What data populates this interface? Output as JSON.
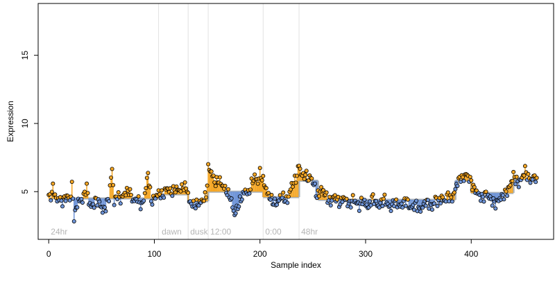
{
  "chart_data": {
    "type": "scatter",
    "title": "",
    "xlabel": "Sample index",
    "ylabel": "Expression",
    "xlim": [
      -10,
      478
    ],
    "ylim": [
      1.5,
      18.8
    ],
    "xticks": [
      0,
      100,
      200,
      300,
      400
    ],
    "yticks": [
      5,
      10,
      15
    ],
    "grid": false,
    "baseline_segments": [
      {
        "x_start": 0,
        "x_end": 104,
        "level": 4.5
      },
      {
        "x_start": 104,
        "x_end": 132,
        "level": 4.8
      },
      {
        "x_start": 132,
        "x_end": 151,
        "level": 4.3
      },
      {
        "x_start": 151,
        "x_end": 203,
        "level": 5.0
      },
      {
        "x_start": 203,
        "x_end": 237,
        "level": 4.6
      },
      {
        "x_start": 237,
        "x_end": 255,
        "level": 5.8
      },
      {
        "x_start": 255,
        "x_end": 385,
        "level": 4.4
      },
      {
        "x_start": 385,
        "x_end": 400,
        "level": 5.8
      },
      {
        "x_start": 400,
        "x_end": 440,
        "level": 4.9
      },
      {
        "x_start": 440,
        "x_end": 462,
        "level": 5.9
      }
    ],
    "annotations": [
      {
        "label": "24hr",
        "x": 2
      },
      {
        "label": "dawn",
        "x": 107
      },
      {
        "label": "dusk",
        "x": 134
      },
      {
        "label": "12:00",
        "x": 153
      },
      {
        "label": "0:00",
        "x": 205
      },
      {
        "label": "48hr",
        "x": 239
      }
    ],
    "vlines": [
      104,
      132,
      151,
      203,
      237
    ],
    "colors": {
      "above": "#f5a623",
      "below": "#6f95d8",
      "baseline": "#aab2bb",
      "vline": "#e2e2e2",
      "annotation": "#b5b5b5",
      "point_stroke": "#000000"
    },
    "anchors": [
      [
        0,
        4.6
      ],
      [
        3,
        4.8
      ],
      [
        4,
        5.4
      ],
      [
        6,
        4.7
      ],
      [
        8,
        4.3
      ],
      [
        10,
        4.6
      ],
      [
        12,
        4.2
      ],
      [
        15,
        4.5
      ],
      [
        18,
        4.7
      ],
      [
        20,
        4.3
      ],
      [
        22,
        5.5
      ],
      [
        24,
        3.2
      ],
      [
        26,
        3.7
      ],
      [
        28,
        4.4
      ],
      [
        30,
        4.3
      ],
      [
        33,
        4.6
      ],
      [
        36,
        5.4
      ],
      [
        38,
        4.2
      ],
      [
        41,
        3.9
      ],
      [
        45,
        4.4
      ],
      [
        48,
        4.2
      ],
      [
        51,
        3.6
      ],
      [
        54,
        3.9
      ],
      [
        57,
        4.6
      ],
      [
        60,
        6.7
      ],
      [
        62,
        4.2
      ],
      [
        65,
        4.8
      ],
      [
        68,
        4.4
      ],
      [
        72,
        4.9
      ],
      [
        76,
        5.1
      ],
      [
        80,
        4.3
      ],
      [
        84,
        4.5
      ],
      [
        88,
        3.9
      ],
      [
        91,
        4.8
      ],
      [
        94,
        6.4
      ],
      [
        97,
        4.3
      ],
      [
        100,
        4.5
      ],
      [
        104,
        4.9
      ],
      [
        108,
        4.7
      ],
      [
        112,
        5.3
      ],
      [
        116,
        4.9
      ],
      [
        120,
        5.2
      ],
      [
        124,
        5.1
      ],
      [
        128,
        5.4
      ],
      [
        131,
        5.2
      ],
      [
        133,
        4.3
      ],
      [
        137,
        4.0
      ],
      [
        141,
        4.1
      ],
      [
        145,
        4.3
      ],
      [
        149,
        4.7
      ],
      [
        151,
        6.7
      ],
      [
        153,
        6.6
      ],
      [
        155,
        6.2
      ],
      [
        158,
        5.6
      ],
      [
        161,
        5.9
      ],
      [
        164,
        5.5
      ],
      [
        167,
        5.2
      ],
      [
        170,
        4.8
      ],
      [
        172,
        4.6
      ],
      [
        174,
        3.9
      ],
      [
        176,
        3.3
      ],
      [
        178,
        3.7
      ],
      [
        180,
        4.1
      ],
      [
        183,
        4.6
      ],
      [
        186,
        5.1
      ],
      [
        189,
        4.8
      ],
      [
        192,
        5.6
      ],
      [
        195,
        6.1
      ],
      [
        198,
        5.7
      ],
      [
        200,
        6.4
      ],
      [
        203,
        5.8
      ],
      [
        205,
        5.4
      ],
      [
        207,
        4.9
      ],
      [
        210,
        4.5
      ],
      [
        213,
        4.2
      ],
      [
        216,
        4.1
      ],
      [
        220,
        4.7
      ],
      [
        223,
        4.5
      ],
      [
        226,
        4.3
      ],
      [
        228,
        5.0
      ],
      [
        231,
        5.6
      ],
      [
        234,
        5.9
      ],
      [
        237,
        7.0
      ],
      [
        239,
        6.3
      ],
      [
        241,
        6.1
      ],
      [
        243,
        6.3
      ],
      [
        246,
        5.9
      ],
      [
        248,
        6.1
      ],
      [
        250,
        5.7
      ],
      [
        252,
        5.3
      ],
      [
        254,
        4.6
      ],
      [
        256,
        4.9
      ],
      [
        258,
        5.2
      ],
      [
        261,
        4.9
      ],
      [
        264,
        4.5
      ],
      [
        267,
        4.2
      ],
      [
        270,
        4.7
      ],
      [
        273,
        4.4
      ],
      [
        276,
        4.1
      ],
      [
        279,
        4.6
      ],
      [
        282,
        4.3
      ],
      [
        285,
        4.0
      ],
      [
        288,
        4.5
      ],
      [
        291,
        4.2
      ],
      [
        294,
        3.9
      ],
      [
        297,
        4.4
      ],
      [
        300,
        4.1
      ],
      [
        303,
        3.8
      ],
      [
        306,
        4.6
      ],
      [
        309,
        4.3
      ],
      [
        312,
        3.9
      ],
      [
        315,
        4.2
      ],
      [
        318,
        4.5
      ],
      [
        321,
        4.0
      ],
      [
        324,
        3.8
      ],
      [
        327,
        4.3
      ],
      [
        330,
        4.1
      ],
      [
        333,
        3.9
      ],
      [
        336,
        4.2
      ],
      [
        339,
        4.4
      ],
      [
        342,
        3.8
      ],
      [
        345,
        3.9
      ],
      [
        348,
        4.1
      ],
      [
        351,
        3.6
      ],
      [
        354,
        3.9
      ],
      [
        357,
        4.3
      ],
      [
        360,
        4.1
      ],
      [
        363,
        3.8
      ],
      [
        366,
        4.5
      ],
      [
        369,
        4.2
      ],
      [
        372,
        4.6
      ],
      [
        375,
        4.3
      ],
      [
        378,
        4.8
      ],
      [
        381,
        4.4
      ],
      [
        384,
        4.9
      ],
      [
        386,
        5.5
      ],
      [
        388,
        5.8
      ],
      [
        390,
        6.1
      ],
      [
        392,
        5.9
      ],
      [
        395,
        6.3
      ],
      [
        398,
        6.0
      ],
      [
        400,
        5.7
      ],
      [
        402,
        5.3
      ],
      [
        405,
        5.0
      ],
      [
        408,
        4.7
      ],
      [
        411,
        4.5
      ],
      [
        414,
        4.9
      ],
      [
        417,
        4.6
      ],
      [
        420,
        4.3
      ],
      [
        423,
        4.1
      ],
      [
        426,
        4.4
      ],
      [
        430,
        4.7
      ],
      [
        434,
        5.0
      ],
      [
        437,
        5.5
      ],
      [
        440,
        6.2
      ],
      [
        442,
        5.9
      ],
      [
        445,
        5.6
      ],
      [
        448,
        6.0
      ],
      [
        451,
        6.6
      ],
      [
        454,
        6.0
      ],
      [
        457,
        5.8
      ],
      [
        460,
        6.2
      ],
      [
        462,
        5.7
      ]
    ]
  }
}
